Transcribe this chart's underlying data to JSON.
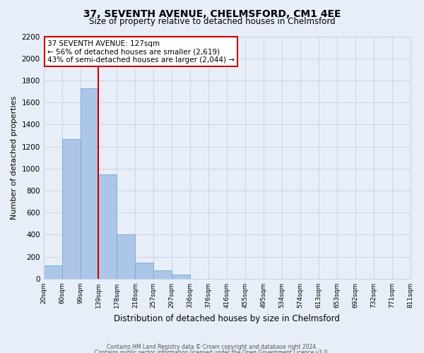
{
  "title": "37, SEVENTH AVENUE, CHELMSFORD, CM1 4EE",
  "subtitle": "Size of property relative to detached houses in Chelmsford",
  "xlabel": "Distribution of detached houses by size in Chelmsford",
  "ylabel": "Number of detached properties",
  "bar_values": [
    120,
    1265,
    1730,
    945,
    405,
    150,
    75,
    35,
    0,
    0,
    0,
    0,
    0,
    0,
    0,
    0,
    0,
    0,
    0,
    0
  ],
  "bin_labels": [
    "20sqm",
    "60sqm",
    "99sqm",
    "139sqm",
    "178sqm",
    "218sqm",
    "257sqm",
    "297sqm",
    "336sqm",
    "376sqm",
    "416sqm",
    "455sqm",
    "495sqm",
    "534sqm",
    "574sqm",
    "613sqm",
    "653sqm",
    "692sqm",
    "732sqm",
    "771sqm",
    "811sqm"
  ],
  "bar_color": "#adc6e8",
  "bar_edge_color": "#6aaad4",
  "vline_color": "#cc0000",
  "ylim": [
    0,
    2200
  ],
  "yticks": [
    0,
    200,
    400,
    600,
    800,
    1000,
    1200,
    1400,
    1600,
    1800,
    2000,
    2200
  ],
  "annotation_text": "37 SEVENTH AVENUE: 127sqm\n← 56% of detached houses are smaller (2,619)\n43% of semi-detached houses are larger (2,044) →",
  "annotation_box_color": "#ffffff",
  "annotation_box_edge": "#cc0000",
  "grid_color": "#c8d4e8",
  "background_color": "#e8eef8",
  "footer_line1": "Contains HM Land Registry data © Crown copyright and database right 2024.",
  "footer_line2": "Contains public sector information licensed under the Open Government Licence v3.0."
}
